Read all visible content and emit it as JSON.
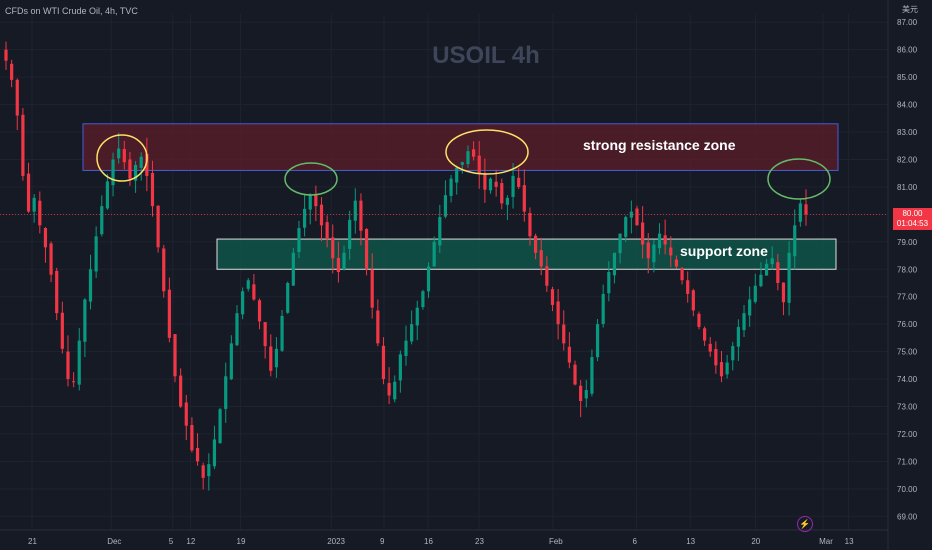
{
  "header": {
    "symbol_info": "CFDs on WTI Crude Oil, 4h, TVC"
  },
  "watermark": "USOIL  4h",
  "currency": "美元",
  "price_badge": {
    "price": "80.00",
    "countdown": "01:04:53"
  },
  "annotations": {
    "resistance_label": "strong resistance zone",
    "support_label": "support zone"
  },
  "colors": {
    "background": "#161a25",
    "up_candle": "#089981",
    "down_candle": "#f23645",
    "resistance_zone": "#5c1e2a",
    "support_zone": "#0e5c4c",
    "circle_yellow": "#ffe066",
    "circle_green": "#66bb6a"
  },
  "chart_data": {
    "type": "candlestick",
    "y_axis": {
      "ylim": [
        68.5,
        87.3
      ],
      "ticks": [
        "69.00",
        "70.00",
        "71.00",
        "72.00",
        "73.00",
        "74.00",
        "75.00",
        "76.00",
        "77.00",
        "78.00",
        "79.00",
        "80.00",
        "81.00",
        "82.00",
        "83.00",
        "84.00",
        "85.00",
        "86.00",
        "87.00"
      ]
    },
    "x_axis": {
      "ticks": [
        "21",
        "Dec",
        "5",
        "12",
        "19",
        "2023",
        "9",
        "16",
        "23",
        "Feb",
        "6",
        "13",
        "20",
        "Mar",
        "13"
      ]
    },
    "zones": [
      {
        "name": "strong resistance zone",
        "from": 81.6,
        "to": 83.3
      },
      {
        "name": "support zone",
        "from": 78.0,
        "to": 79.1
      }
    ],
    "current_price": 80.0,
    "closes": [
      85.6,
      84.9,
      83.6,
      81.4,
      80.1,
      80.6,
      79.6,
      78.8,
      77.8,
      76.4,
      75.1,
      74.0,
      73.9,
      75.4,
      76.9,
      78.0,
      79.2,
      80.3,
      81.2,
      82.0,
      82.4,
      81.9,
      81.3,
      81.8,
      82.1,
      81.4,
      80.3,
      78.8,
      77.2,
      75.5,
      74.1,
      73.0,
      72.3,
      71.4,
      71.0,
      70.4,
      70.9,
      71.8,
      72.9,
      74.1,
      75.3,
      76.4,
      77.2,
      77.6,
      76.9,
      76.1,
      75.2,
      74.3,
      75.1,
      76.3,
      77.5,
      78.6,
      79.5,
      80.2,
      80.7,
      80.3,
      79.6,
      79.1,
      78.4,
      77.9,
      78.6,
      79.8,
      80.5,
      79.4,
      78.0,
      76.6,
      75.3,
      74.0,
      73.4,
      73.9,
      74.9,
      75.4,
      76.0,
      76.6,
      77.2,
      78.1,
      79.0,
      79.9,
      80.7,
      81.3,
      81.7,
      81.9,
      82.3,
      82.1,
      81.5,
      80.9,
      81.3,
      81.0,
      80.4,
      80.6,
      81.4,
      81.0,
      80.1,
      79.2,
      78.6,
      78.1,
      77.4,
      76.7,
      76.0,
      75.3,
      74.6,
      73.8,
      73.2,
      73.6,
      74.8,
      76.0,
      77.1,
      77.9,
      78.6,
      79.3,
      79.9,
      80.1,
      79.6,
      78.9,
      78.4,
      78.9,
      79.3,
      78.9,
      78.5,
      78.1,
      77.6,
      77.1,
      76.5,
      75.9,
      75.4,
      75.0,
      74.5,
      74.1,
      74.6,
      75.2,
      75.9,
      76.4,
      76.9,
      77.4,
      77.8,
      78.2,
      78.4,
      77.5,
      76.8,
      78.6,
      79.6,
      80.4,
      80.0
    ]
  }
}
